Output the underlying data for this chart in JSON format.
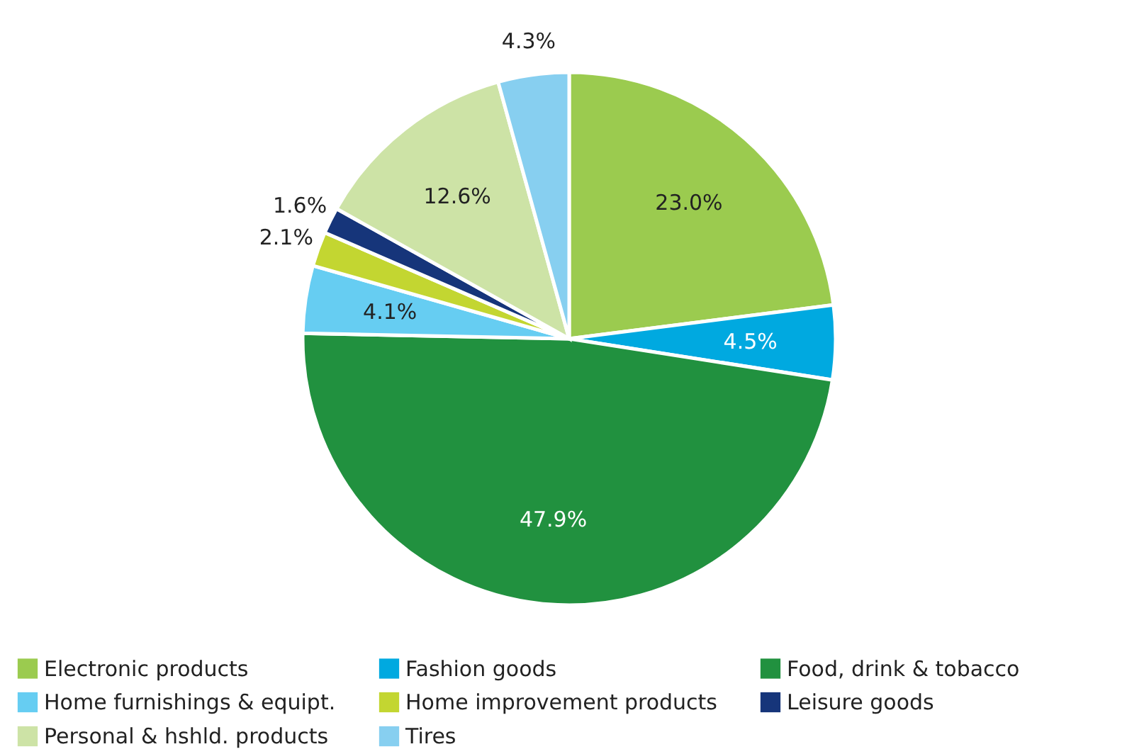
{
  "chart_data": {
    "type": "pie",
    "categories": [
      "Electronic products",
      "Fashion goods",
      "Food, drink & tobacco",
      "Home furnishings & equipt.",
      "Home improvement products",
      "Leisure goods",
      "Personal & hshld. products",
      "Tires"
    ],
    "values": [
      23.0,
      4.5,
      47.9,
      4.1,
      2.1,
      1.6,
      12.6,
      4.3
    ],
    "colors": [
      "#9bcb4f",
      "#00a9e0",
      "#21913f",
      "#66cdf2",
      "#c3d631",
      "#16357a",
      "#cde3a6",
      "#87cff0"
    ],
    "value_labels": [
      "23.0%",
      "4.5%",
      "47.9%",
      "4.1%",
      "2.1%",
      "1.6%",
      "12.6%",
      "4.3%"
    ],
    "legend": "bottom"
  }
}
